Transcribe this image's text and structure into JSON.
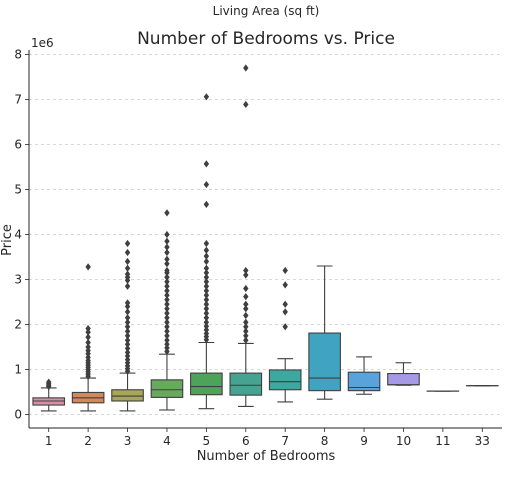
{
  "chart_data": {
    "type": "box",
    "top_label": "Living Area (sq ft)",
    "title": "Number of Bedrooms vs. Price",
    "xlabel": "Number of Bedrooms",
    "ylabel": "Price",
    "y_scale_label": "1e6",
    "y_scale": 1000000,
    "ylim": [
      -0.3,
      8.1
    ],
    "yticks": [
      0,
      1,
      2,
      3,
      4,
      5,
      6,
      7,
      8
    ],
    "grid": "horizontal dashed",
    "categories": [
      "1",
      "2",
      "3",
      "4",
      "5",
      "6",
      "7",
      "8",
      "9",
      "10",
      "11",
      "33"
    ],
    "boxes": [
      {
        "cat": "1",
        "color": "#d68fa6",
        "whislo": 0.08,
        "q1": 0.21,
        "med": 0.3,
        "q3": 0.37,
        "whishi": 0.59,
        "fliers": [
          0.62,
          0.65,
          0.68,
          0.72
        ]
      },
      {
        "cat": "2",
        "color": "#d4885a",
        "whislo": 0.08,
        "q1": 0.26,
        "med": 0.37,
        "q3": 0.49,
        "whishi": 0.81,
        "fliers": [
          0.85,
          0.9,
          0.95,
          1.0,
          1.05,
          1.1,
          1.15,
          1.2,
          1.27,
          1.35,
          1.42,
          1.5,
          1.6,
          1.72,
          1.83,
          1.91,
          3.28
        ]
      },
      {
        "cat": "3",
        "color": "#a9a55a",
        "whislo": 0.08,
        "q1": 0.3,
        "med": 0.41,
        "q3": 0.55,
        "whishi": 0.92,
        "fliers": [
          0.96,
          1.02,
          1.08,
          1.15,
          1.22,
          1.3,
          1.38,
          1.47,
          1.56,
          1.65,
          1.75,
          1.85,
          1.95,
          2.05,
          2.15,
          2.28,
          2.4,
          2.48,
          2.85,
          2.98,
          3.05,
          3.12,
          3.25,
          3.4,
          3.6,
          3.8
        ]
      },
      {
        "cat": "4",
        "color": "#69a95d",
        "whislo": 0.1,
        "q1": 0.38,
        "med": 0.55,
        "q3": 0.77,
        "whishi": 1.34,
        "fliers": [
          1.4,
          1.48,
          1.56,
          1.65,
          1.75,
          1.85,
          1.95,
          2.05,
          2.15,
          2.25,
          2.35,
          2.45,
          2.55,
          2.65,
          2.75,
          2.85,
          2.95,
          3.05,
          3.15,
          3.2,
          3.35,
          3.45,
          3.6,
          3.72,
          3.85,
          4.0,
          4.48
        ]
      },
      {
        "cat": "5",
        "color": "#4ea35b",
        "whislo": 0.13,
        "q1": 0.44,
        "med": 0.62,
        "q3": 0.92,
        "whishi": 1.6,
        "fliers": [
          1.66,
          1.73,
          1.8,
          1.88,
          1.96,
          2.05,
          2.15,
          2.25,
          2.35,
          2.45,
          2.55,
          2.65,
          2.75,
          2.85,
          2.95,
          3.05,
          3.15,
          3.25,
          3.4,
          3.52,
          3.65,
          3.8,
          4.67,
          5.11,
          5.57,
          7.06
        ]
      },
      {
        "cat": "6",
        "color": "#46a391",
        "whislo": 0.18,
        "q1": 0.43,
        "med": 0.65,
        "q3": 0.92,
        "whishi": 1.58,
        "fliers": [
          1.65,
          1.75,
          1.85,
          1.95,
          2.05,
          2.2,
          2.35,
          2.45,
          2.62,
          2.8,
          3.1,
          3.2,
          6.89,
          7.7
        ]
      },
      {
        "cat": "7",
        "color": "#3ea7a0",
        "whislo": 0.28,
        "q1": 0.55,
        "med": 0.73,
        "q3": 0.99,
        "whishi": 1.24,
        "fliers": [
          1.95,
          2.28,
          2.45,
          2.88,
          3.2
        ]
      },
      {
        "cat": "8",
        "color": "#40a3c0",
        "whislo": 0.34,
        "q1": 0.53,
        "med": 0.81,
        "q3": 1.81,
        "whishi": 3.3,
        "fliers": []
      },
      {
        "cat": "9",
        "color": "#5aa2da",
        "whislo": 0.45,
        "q1": 0.53,
        "med": 0.6,
        "q3": 0.94,
        "whishi": 1.28,
        "fliers": []
      },
      {
        "cat": "10",
        "color": "#a69ae6",
        "whislo": 0.65,
        "q1": 0.66,
        "med": 0.66,
        "q3": 0.91,
        "whishi": 1.15,
        "fliers": []
      },
      {
        "cat": "11",
        "color": "#c497e0",
        "whislo": 0.52,
        "q1": 0.52,
        "med": 0.52,
        "q3": 0.52,
        "whishi": 0.52,
        "fliers": []
      },
      {
        "cat": "33",
        "color": "#d98fc7",
        "whislo": 0.64,
        "q1": 0.64,
        "med": 0.64,
        "q3": 0.64,
        "whishi": 0.64,
        "fliers": []
      }
    ]
  }
}
